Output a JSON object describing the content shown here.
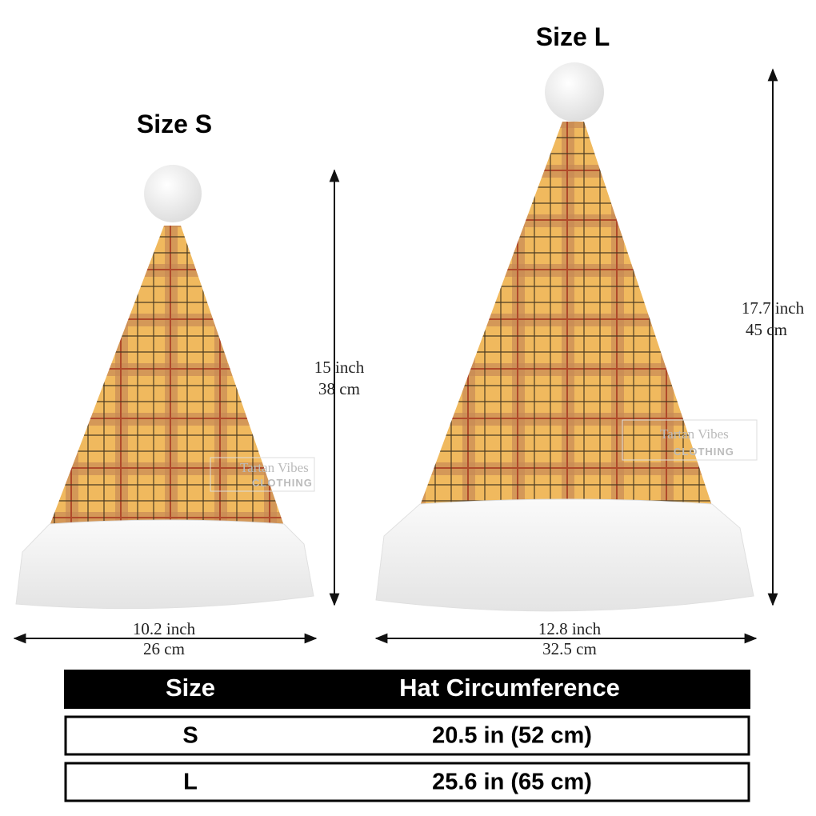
{
  "hats": [
    {
      "title": "Size S",
      "height": [
        "15 inch",
        "38 cm"
      ],
      "width": [
        "10.2 inch",
        "26 cm"
      ]
    },
    {
      "title": "Size L",
      "height": [
        "17.7 inch",
        "45 cm"
      ],
      "width": [
        "12.8 inch",
        "32.5 cm"
      ]
    }
  ],
  "watermark": [
    "Tartan Vibes",
    "CLOTHING"
  ],
  "table": {
    "header": [
      "Size",
      "Hat Circumference"
    ],
    "rows": [
      [
        "S",
        "20.5 in (52 cm)"
      ],
      [
        "L",
        "25.6 in (65 cm)"
      ]
    ]
  }
}
